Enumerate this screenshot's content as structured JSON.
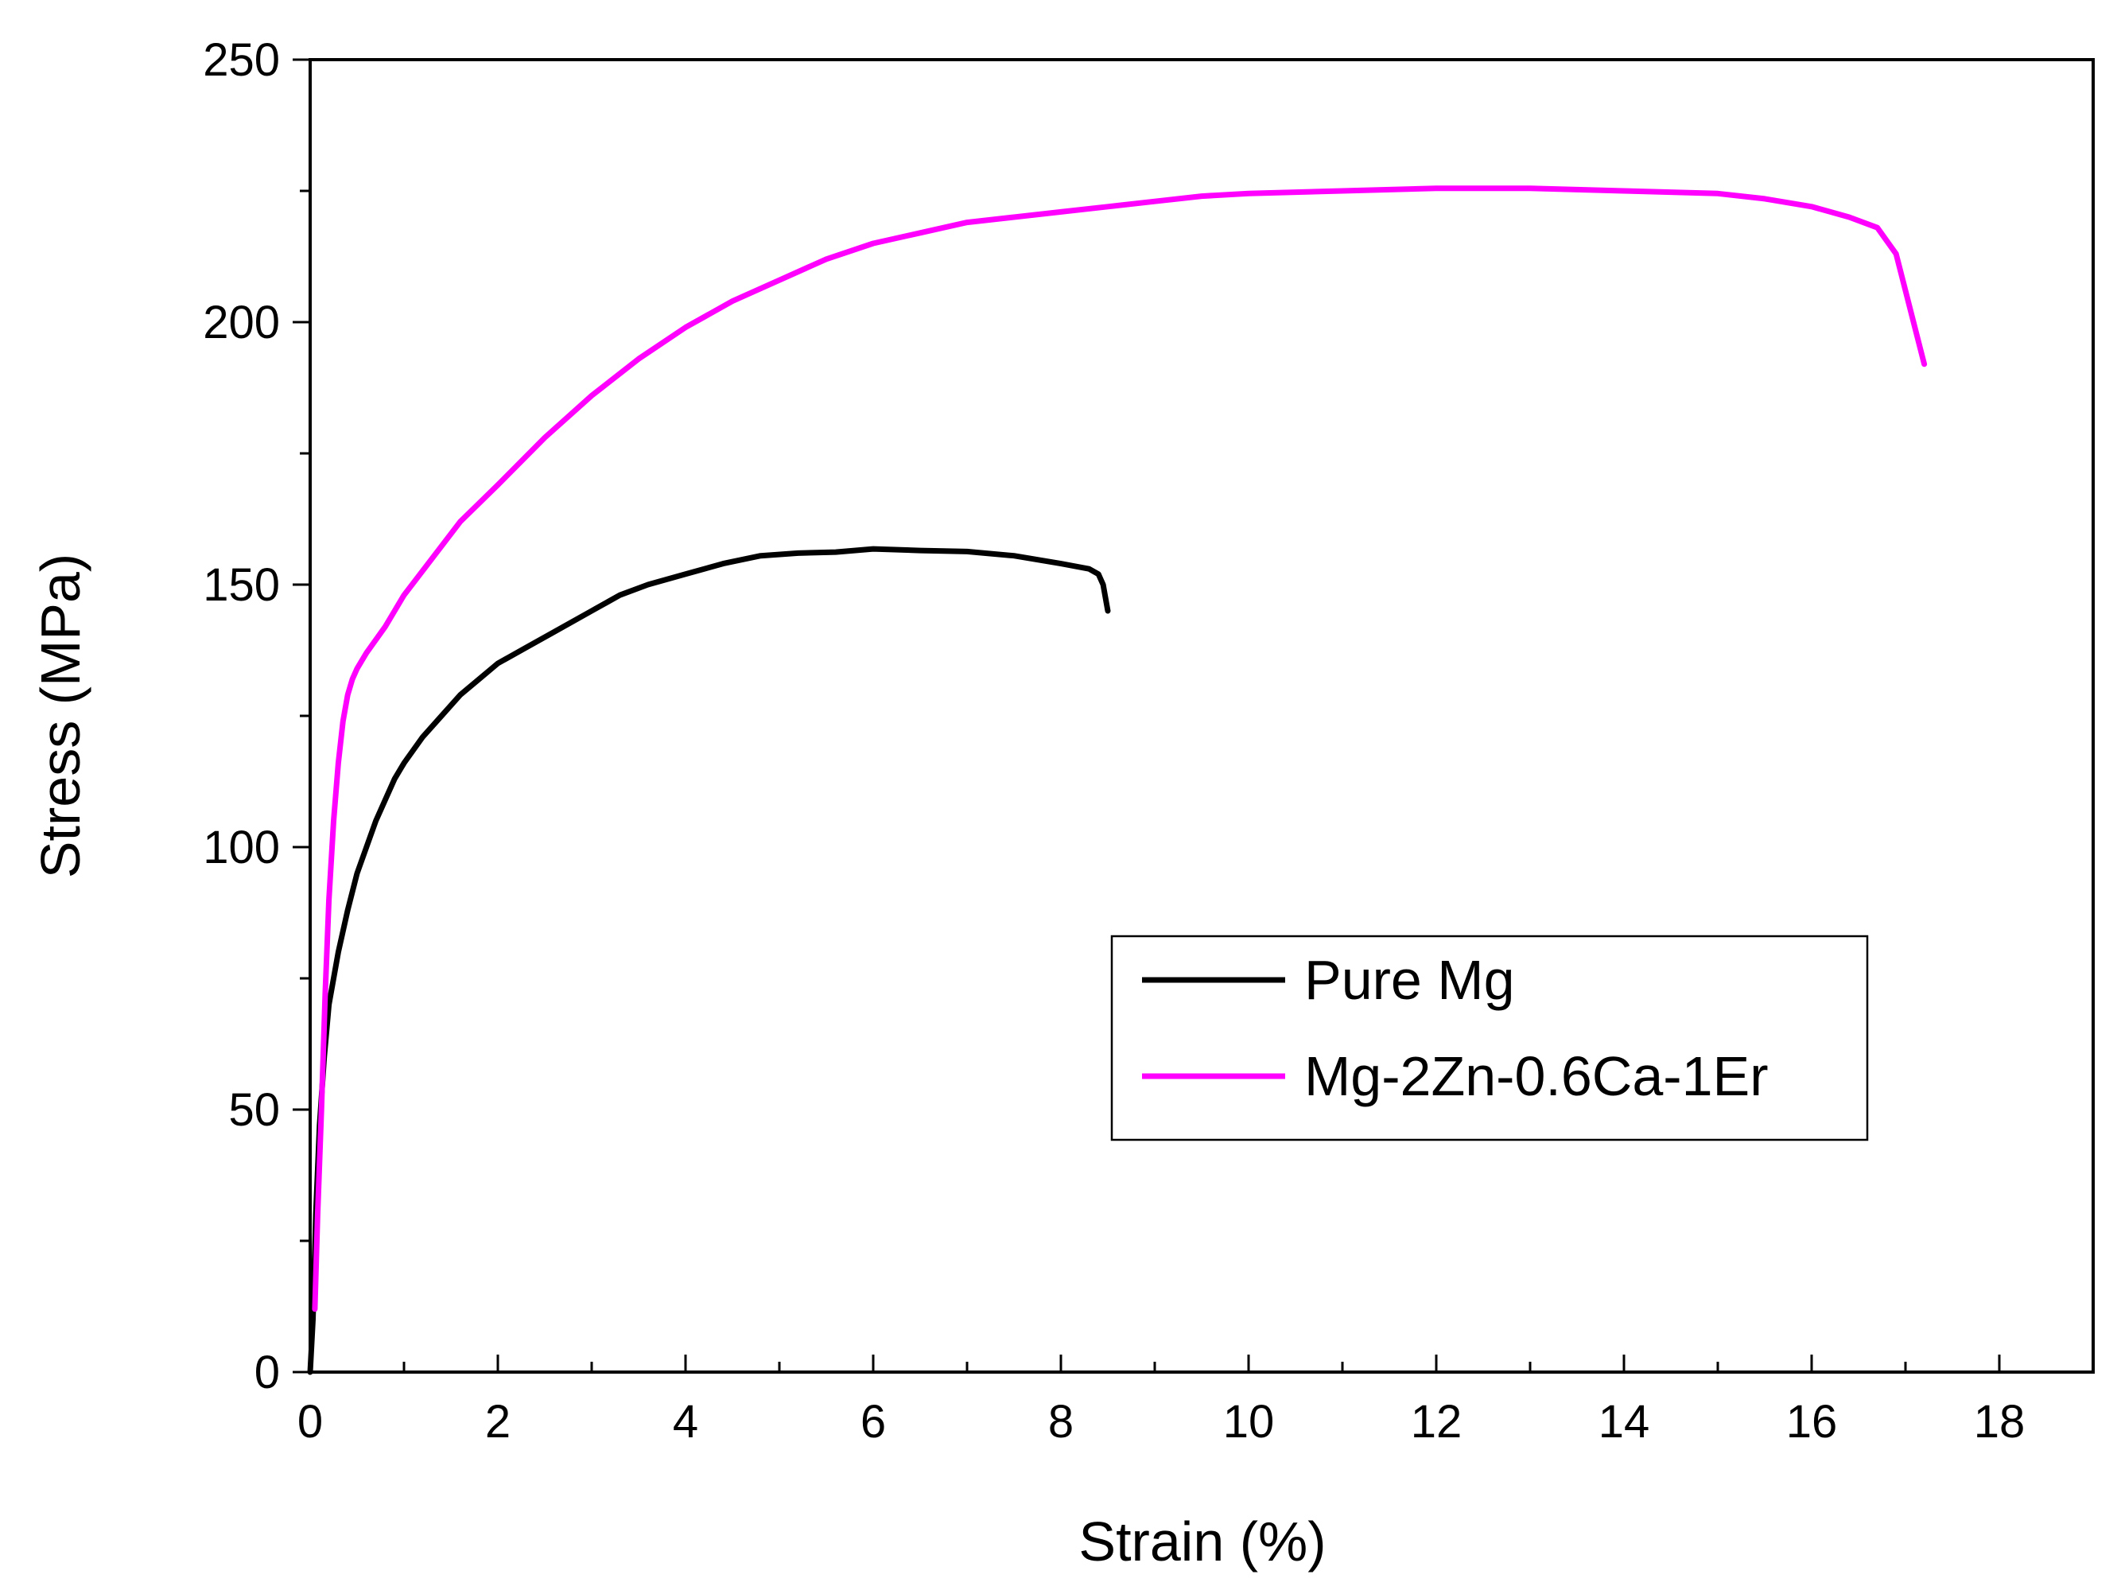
{
  "chart_data": {
    "type": "line",
    "title": "",
    "xlabel": "Strain (%)",
    "ylabel": "Stress (MPa)",
    "xlim": [
      0,
      19
    ],
    "ylim": [
      0,
      250
    ],
    "x_ticks": [
      0,
      2,
      4,
      6,
      8,
      10,
      12,
      14,
      16,
      18
    ],
    "y_ticks": [
      0,
      50,
      100,
      150,
      200,
      250
    ],
    "grid": false,
    "legend_position": "center-right",
    "series": [
      {
        "name": "Pure Mg",
        "color": "#000000",
        "x": [
          0,
          0.03,
          0.06,
          0.1,
          0.15,
          0.2,
          0.3,
          0.4,
          0.5,
          0.6,
          0.7,
          0.8,
          0.9,
          1.0,
          1.2,
          1.4,
          1.6,
          1.8,
          2.0,
          2.3,
          2.6,
          3.0,
          3.3,
          3.6,
          4.0,
          4.4,
          4.8,
          5.2,
          5.6,
          6.0,
          6.5,
          7.0,
          7.5,
          8.0,
          8.3,
          8.4,
          8.45,
          8.5
        ],
        "y": [
          0,
          10,
          30,
          47,
          60,
          70,
          80,
          88,
          95,
          100,
          105,
          109,
          113,
          116,
          121,
          125,
          129,
          132,
          135,
          138,
          141,
          145,
          148,
          150,
          152,
          154,
          155.5,
          156,
          156.2,
          156.8,
          156.5,
          156.3,
          155.5,
          154,
          153,
          152,
          150,
          145
        ]
      },
      {
        "name": "Mg-2Zn-0.6Ca-1Er",
        "color": "#ff00ff",
        "x": [
          0.05,
          0.08,
          0.12,
          0.16,
          0.2,
          0.25,
          0.3,
          0.35,
          0.4,
          0.45,
          0.5,
          0.6,
          0.8,
          1.0,
          1.3,
          1.6,
          2.0,
          2.5,
          3.0,
          3.5,
          4.0,
          4.5,
          5.0,
          5.5,
          6.0,
          6.5,
          7.0,
          7.5,
          8.0,
          8.5,
          9.0,
          9.5,
          10.0,
          11.0,
          12.0,
          13.0,
          14.0,
          15.0,
          15.5,
          16.0,
          16.4,
          16.7,
          16.9,
          17.0,
          17.1,
          17.2
        ],
        "y": [
          12,
          30,
          50,
          72,
          90,
          105,
          116,
          124,
          129,
          132,
          134,
          137,
          142,
          148,
          155,
          162,
          169,
          178,
          186,
          193,
          199,
          204,
          208,
          212,
          215,
          217,
          219,
          220,
          221,
          222,
          223,
          224,
          224.5,
          225,
          225.5,
          225.5,
          225,
          224.5,
          223.5,
          222,
          220,
          218,
          213,
          206,
          199,
          192
        ]
      }
    ]
  }
}
